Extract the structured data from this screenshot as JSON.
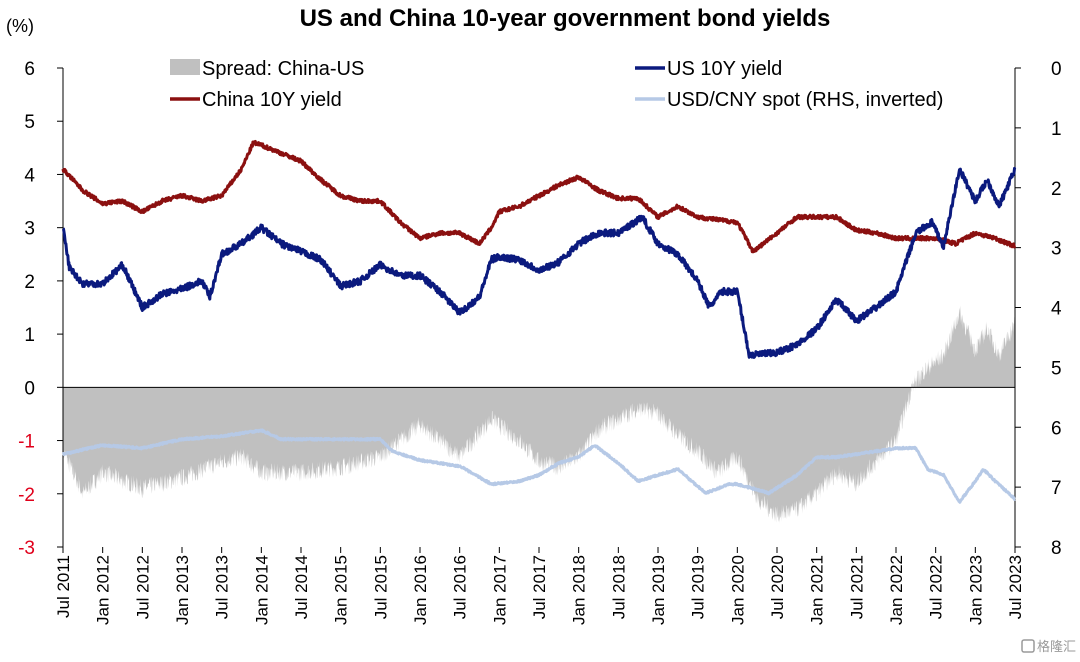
{
  "chart_data": {
    "type": "line",
    "title": "US and China 10-year government bond yields",
    "ylabel_left": "(%)",
    "ylabel_right": "",
    "ylim_left": [
      -3,
      6
    ],
    "ylim_right": [
      0,
      8
    ],
    "right_axis_inverted": true,
    "yticks_left": [
      "6",
      "5",
      "4",
      "3",
      "2",
      "1",
      "0",
      "-1",
      "-2",
      "-3"
    ],
    "yticks_right": [
      "0",
      "1",
      "2",
      "3",
      "4",
      "5",
      "6",
      "7",
      "8"
    ],
    "x_range": [
      "Jul 2011",
      "Jul 2023"
    ],
    "x_ticks": [
      "Jul 2011",
      "Jan 2012",
      "Jul 2012",
      "Jan 2013",
      "Jul 2013",
      "Jan 2014",
      "Jul 2014",
      "Jan 2015",
      "Jul 2015",
      "Jan 2016",
      "Jul 2016",
      "Jan 2017",
      "Jul 2017",
      "Jan 2018",
      "Jul 2018",
      "Jan 2019",
      "Jul 2019",
      "Jan 2020",
      "Jul 2020",
      "Jan 2021",
      "Jul 2021",
      "Jan 2022",
      "Jul 2022",
      "Jan 2023",
      "Jul 2023"
    ],
    "x_tick_times": [
      2011.5,
      2012.0,
      2012.5,
      2013.0,
      2013.5,
      2014.0,
      2014.5,
      2015.0,
      2015.5,
      2016.0,
      2016.5,
      2017.0,
      2017.5,
      2018.0,
      2018.5,
      2019.0,
      2019.5,
      2020.0,
      2020.5,
      2021.0,
      2021.5,
      2022.0,
      2022.5,
      2023.0,
      2023.5
    ],
    "legend": [
      {
        "label": "Spread: China-US",
        "color": "#c0c0c0",
        "kind": "area"
      },
      {
        "label": "US 10Y yield",
        "color": "#0b1a7e",
        "kind": "line"
      },
      {
        "label": "China 10Y yield",
        "color": "#8b1010",
        "kind": "line"
      },
      {
        "label": "USD/CNY spot (RHS, inverted)",
        "color": "#b6c9e6",
        "kind": "line"
      }
    ],
    "series": [
      {
        "name": "US 10Y yield",
        "axis": "left",
        "points": [
          [
            2011.5,
            3.0
          ],
          [
            2011.58,
            2.25
          ],
          [
            2011.75,
            1.95
          ],
          [
            2012.0,
            1.95
          ],
          [
            2012.25,
            2.3
          ],
          [
            2012.5,
            1.5
          ],
          [
            2012.75,
            1.75
          ],
          [
            2013.0,
            1.85
          ],
          [
            2013.25,
            2.0
          ],
          [
            2013.35,
            1.7
          ],
          [
            2013.5,
            2.5
          ],
          [
            2013.75,
            2.7
          ],
          [
            2014.0,
            3.0
          ],
          [
            2014.25,
            2.7
          ],
          [
            2014.5,
            2.55
          ],
          [
            2014.75,
            2.4
          ],
          [
            2015.0,
            1.9
          ],
          [
            2015.25,
            2.0
          ],
          [
            2015.5,
            2.3
          ],
          [
            2015.75,
            2.1
          ],
          [
            2016.0,
            2.1
          ],
          [
            2016.25,
            1.8
          ],
          [
            2016.5,
            1.4
          ],
          [
            2016.75,
            1.7
          ],
          [
            2016.9,
            2.4
          ],
          [
            2017.0,
            2.45
          ],
          [
            2017.25,
            2.4
          ],
          [
            2017.5,
            2.2
          ],
          [
            2017.75,
            2.35
          ],
          [
            2018.0,
            2.7
          ],
          [
            2018.25,
            2.9
          ],
          [
            2018.5,
            2.9
          ],
          [
            2018.8,
            3.2
          ],
          [
            2019.0,
            2.7
          ],
          [
            2019.25,
            2.5
          ],
          [
            2019.5,
            2.0
          ],
          [
            2019.65,
            1.5
          ],
          [
            2019.8,
            1.8
          ],
          [
            2020.0,
            1.8
          ],
          [
            2020.15,
            0.6
          ],
          [
            2020.5,
            0.65
          ],
          [
            2020.75,
            0.8
          ],
          [
            2021.0,
            1.1
          ],
          [
            2021.25,
            1.65
          ],
          [
            2021.5,
            1.25
          ],
          [
            2021.75,
            1.5
          ],
          [
            2022.0,
            1.8
          ],
          [
            2022.25,
            2.9
          ],
          [
            2022.45,
            3.1
          ],
          [
            2022.6,
            2.65
          ],
          [
            2022.8,
            4.1
          ],
          [
            2023.0,
            3.5
          ],
          [
            2023.15,
            3.9
          ],
          [
            2023.3,
            3.4
          ],
          [
            2023.5,
            4.1
          ]
        ]
      },
      {
        "name": "China 10Y yield",
        "axis": "left",
        "points": [
          [
            2011.5,
            4.1
          ],
          [
            2011.75,
            3.7
          ],
          [
            2012.0,
            3.45
          ],
          [
            2012.25,
            3.5
          ],
          [
            2012.5,
            3.3
          ],
          [
            2012.75,
            3.5
          ],
          [
            2013.0,
            3.6
          ],
          [
            2013.25,
            3.5
          ],
          [
            2013.5,
            3.6
          ],
          [
            2013.75,
            4.1
          ],
          [
            2013.9,
            4.6
          ],
          [
            2014.0,
            4.55
          ],
          [
            2014.25,
            4.4
          ],
          [
            2014.5,
            4.25
          ],
          [
            2014.75,
            3.9
          ],
          [
            2015.0,
            3.6
          ],
          [
            2015.25,
            3.5
          ],
          [
            2015.5,
            3.5
          ],
          [
            2015.75,
            3.1
          ],
          [
            2016.0,
            2.8
          ],
          [
            2016.25,
            2.9
          ],
          [
            2016.5,
            2.9
          ],
          [
            2016.75,
            2.7
          ],
          [
            2016.9,
            3.0
          ],
          [
            2017.0,
            3.3
          ],
          [
            2017.25,
            3.4
          ],
          [
            2017.5,
            3.6
          ],
          [
            2017.75,
            3.8
          ],
          [
            2018.0,
            3.95
          ],
          [
            2018.25,
            3.7
          ],
          [
            2018.5,
            3.55
          ],
          [
            2018.75,
            3.55
          ],
          [
            2019.0,
            3.2
          ],
          [
            2019.25,
            3.4
          ],
          [
            2019.5,
            3.2
          ],
          [
            2019.75,
            3.15
          ],
          [
            2020.0,
            3.1
          ],
          [
            2020.2,
            2.55
          ],
          [
            2020.5,
            2.9
          ],
          [
            2020.75,
            3.2
          ],
          [
            2021.0,
            3.2
          ],
          [
            2021.25,
            3.2
          ],
          [
            2021.5,
            2.95
          ],
          [
            2021.75,
            2.9
          ],
          [
            2022.0,
            2.8
          ],
          [
            2022.25,
            2.8
          ],
          [
            2022.5,
            2.8
          ],
          [
            2022.75,
            2.7
          ],
          [
            2023.0,
            2.9
          ],
          [
            2023.25,
            2.8
          ],
          [
            2023.5,
            2.65
          ]
        ]
      },
      {
        "name": "USD/CNY spot (RHS, inverted)",
        "axis": "right",
        "points": [
          [
            2011.5,
            6.45
          ],
          [
            2012.0,
            6.3
          ],
          [
            2012.5,
            6.35
          ],
          [
            2013.0,
            6.2
          ],
          [
            2013.5,
            6.15
          ],
          [
            2014.0,
            6.05
          ],
          [
            2014.25,
            6.2
          ],
          [
            2014.5,
            6.2
          ],
          [
            2015.0,
            6.2
          ],
          [
            2015.5,
            6.2
          ],
          [
            2015.65,
            6.4
          ],
          [
            2016.0,
            6.55
          ],
          [
            2016.5,
            6.65
          ],
          [
            2016.9,
            6.95
          ],
          [
            2017.25,
            6.9
          ],
          [
            2017.5,
            6.8
          ],
          [
            2017.75,
            6.6
          ],
          [
            2018.0,
            6.5
          ],
          [
            2018.2,
            6.3
          ],
          [
            2018.5,
            6.6
          ],
          [
            2018.75,
            6.9
          ],
          [
            2019.0,
            6.8
          ],
          [
            2019.25,
            6.7
          ],
          [
            2019.6,
            7.1
          ],
          [
            2019.9,
            6.95
          ],
          [
            2020.0,
            6.95
          ],
          [
            2020.4,
            7.1
          ],
          [
            2020.75,
            6.8
          ],
          [
            2021.0,
            6.5
          ],
          [
            2021.25,
            6.5
          ],
          [
            2021.5,
            6.45
          ],
          [
            2021.75,
            6.4
          ],
          [
            2022.0,
            6.35
          ],
          [
            2022.25,
            6.35
          ],
          [
            2022.4,
            6.7
          ],
          [
            2022.6,
            6.8
          ],
          [
            2022.8,
            7.25
          ],
          [
            2023.0,
            6.9
          ],
          [
            2023.1,
            6.7
          ],
          [
            2023.25,
            6.9
          ],
          [
            2023.5,
            7.2
          ]
        ]
      },
      {
        "name": "Spread: China-US",
        "axis": "left",
        "kind": "area",
        "points": [
          [
            2011.5,
            -1.2
          ],
          [
            2011.75,
            -2.0
          ],
          [
            2012.0,
            -1.6
          ],
          [
            2012.5,
            -1.9
          ],
          [
            2013.0,
            -1.7
          ],
          [
            2013.5,
            -1.4
          ],
          [
            2013.75,
            -1.3
          ],
          [
            2014.0,
            -1.6
          ],
          [
            2014.5,
            -1.6
          ],
          [
            2015.0,
            -1.5
          ],
          [
            2015.5,
            -1.3
          ],
          [
            2015.75,
            -1.0
          ],
          [
            2016.0,
            -0.7
          ],
          [
            2016.5,
            -1.3
          ],
          [
            2016.9,
            -0.6
          ],
          [
            2017.25,
            -1.0
          ],
          [
            2017.5,
            -1.4
          ],
          [
            2017.75,
            -1.5
          ],
          [
            2018.0,
            -1.3
          ],
          [
            2018.25,
            -0.8
          ],
          [
            2018.5,
            -0.6
          ],
          [
            2018.75,
            -0.4
          ],
          [
            2019.0,
            -0.5
          ],
          [
            2019.25,
            -0.9
          ],
          [
            2019.5,
            -1.2
          ],
          [
            2019.75,
            -1.6
          ],
          [
            2020.0,
            -1.3
          ],
          [
            2020.25,
            -2.1
          ],
          [
            2020.5,
            -2.4
          ],
          [
            2020.75,
            -2.3
          ],
          [
            2021.0,
            -2.0
          ],
          [
            2021.25,
            -1.6
          ],
          [
            2021.5,
            -1.8
          ],
          [
            2021.75,
            -1.4
          ],
          [
            2022.0,
            -1.0
          ],
          [
            2022.2,
            0.0
          ],
          [
            2022.35,
            0.3
          ],
          [
            2022.6,
            0.6
          ],
          [
            2022.8,
            1.4
          ],
          [
            2023.0,
            0.7
          ],
          [
            2023.15,
            1.1
          ],
          [
            2023.3,
            0.6
          ],
          [
            2023.5,
            1.2
          ]
        ]
      }
    ],
    "grid": false,
    "legend_placement": "top, two columns inside plot"
  },
  "watermark": "格隆汇"
}
